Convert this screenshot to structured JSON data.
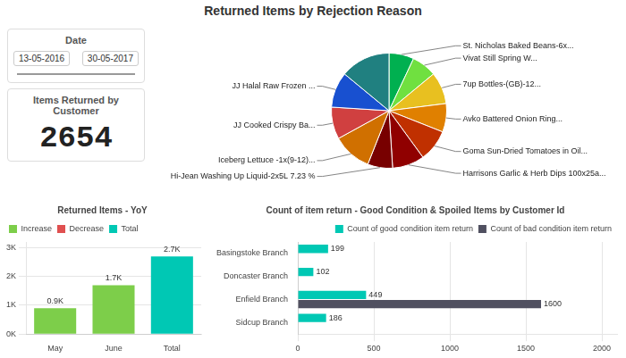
{
  "chart_data": [
    {
      "type": "slicer",
      "title": "Date",
      "categories": [
        "13-05-2016",
        "30-05-2017"
      ]
    },
    {
      "type": "card",
      "title": "Items Returned by Customer",
      "values": [
        2654
      ]
    },
    {
      "type": "pie",
      "title": "Returned Items by Rejection Reason",
      "categories": [
        "St. Nicholas Baked Beans-6x...",
        "Vivat Still Spring W...",
        "7up Bottles-(GB)-12...",
        "Avko Battered Onion Ring...",
        "Goma Sun-Dried Tomatoes in Oil...",
        "Harrisons Garlic & Herb Dips 100x25a...",
        "Hi-Jean Washing Up Liquid-2x5L 7.23 %",
        "Iceberg Lettuce -1x(9-12)...",
        "JJ Cooked Crispy Ba...",
        "JJ Halal Raw Frozen ...",
        null
      ],
      "values": [
        7,
        7,
        9,
        8,
        9,
        9,
        7,
        11,
        9,
        10,
        14
      ],
      "colors": [
        "#00b050",
        "#70e040",
        "#e8c020",
        "#e08000",
        "#c03000",
        "#900000",
        "#780000",
        "#d07000",
        "#d04040",
        "#1850d0",
        "#208080"
      ]
    },
    {
      "type": "bar",
      "title": "Returned Items - YoY",
      "categories": [
        "May",
        "June",
        "Total"
      ],
      "series": [
        {
          "name": "Increase",
          "color": "#7dce4a",
          "values": [
            900,
            1700,
            null
          ],
          "value_labels": [
            "0.9K",
            "1.7K",
            null
          ]
        },
        {
          "name": "Decrease",
          "color": "#e05050",
          "values": [
            null,
            null,
            null
          ]
        },
        {
          "name": "Total",
          "color": "#00c8b4",
          "values": [
            null,
            null,
            2700
          ],
          "value_labels": [
            null,
            null,
            "2.7K"
          ]
        }
      ],
      "stacked": true,
      "data_labels": true,
      "ylim": [
        0,
        3200
      ],
      "yticks": [
        {
          "value": 0,
          "label": "0K"
        },
        {
          "value": 1000,
          "label": "1K"
        },
        {
          "value": 2000,
          "label": "2K"
        },
        {
          "value": 3000,
          "label": "3K"
        }
      ],
      "grid": true,
      "legend": "upper left"
    },
    {
      "type": "bar",
      "orientation": "horizontal",
      "title": "Count of item return - Good Condition & Spoiled Items by Customer Id",
      "categories": [
        "Basingstoke Branch",
        "Doncaster Branch",
        "Enfield Branch",
        "Sidcup Branch"
      ],
      "series": [
        {
          "name": "Count of good condition item return",
          "color": "#00c8b4",
          "values": [
            199,
            102,
            449,
            186
          ]
        },
        {
          "name": "Count of bad condition item return",
          "color": "#505060",
          "values": [
            0,
            0,
            1600,
            0
          ],
          "value_labels": [
            null,
            null,
            "1600",
            null
          ]
        }
      ],
      "data_labels": true,
      "xlim": [
        0,
        2100
      ],
      "xticks": [
        0,
        500,
        1000,
        1500,
        2000
      ],
      "grid": true,
      "legend": "upper right"
    }
  ]
}
